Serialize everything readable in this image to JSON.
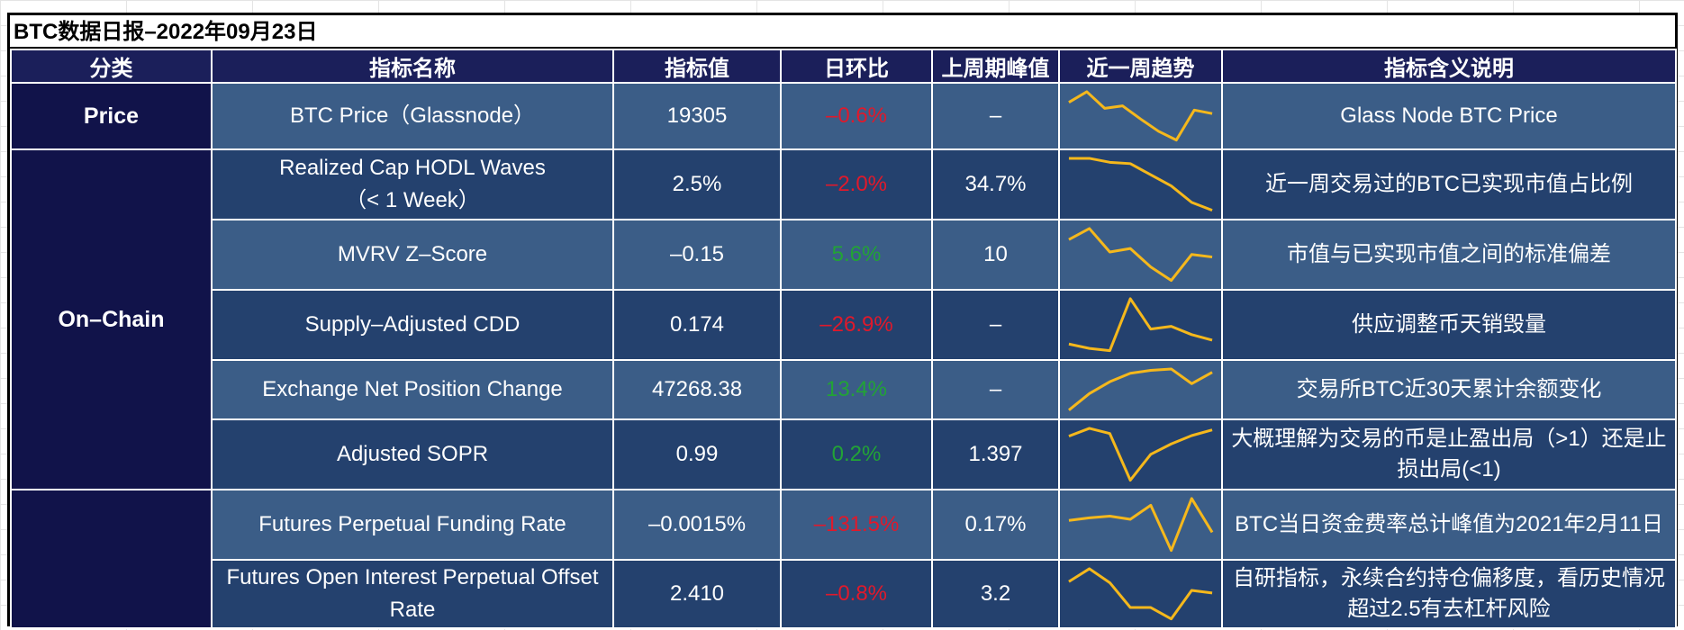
{
  "title": "BTC数据日报–2022年09月23日",
  "headers": [
    "分类",
    "指标名称",
    "指标值",
    "日环比",
    "上周期峰值",
    "近一周趋势",
    "指标含义说明"
  ],
  "categories": {
    "price": "Price",
    "onchain": "On–Chain",
    "derivatives": ""
  },
  "trend_color": "#f5b81c",
  "rows": [
    {
      "name": "BTC Price（Glassnode）",
      "value": "19305",
      "dod": "–0.6%",
      "dod_sign": "neg",
      "peak": "–",
      "trend": [
        0.62,
        0.92,
        0.45,
        0.52,
        0.15,
        -0.2,
        -0.45,
        0.4,
        0.3
      ],
      "desc": "Glass Node BTC Price"
    },
    {
      "name": "Realized Cap HODL Waves（< 1 Week）",
      "name_lines": [
        "Realized Cap HODL Waves",
        "（< 1 Week）"
      ],
      "value": "2.5%",
      "dod": "–2.0%",
      "dod_sign": "neg",
      "peak": "34.7%",
      "trend": [
        1.0,
        1.0,
        0.94,
        0.92,
        0.75,
        0.58,
        0.33,
        0.21
      ],
      "desc": "近一周交易过的BTC已实现市值占比例"
    },
    {
      "name": "MVRV Z–Score",
      "value": "–0.15",
      "dod": "5.6%",
      "dod_sign": "pos",
      "peak": "10",
      "trend": [
        0.7,
        0.92,
        0.45,
        0.52,
        0.15,
        -0.12,
        0.4,
        0.35
      ],
      "desc": "市值与已实现市值之间的标准偏差"
    },
    {
      "name": "Supply–Adjusted CDD",
      "value": "0.174",
      "dod": "–26.9%",
      "dod_sign": "neg",
      "peak": "–",
      "trend": [
        0.18,
        0.1,
        0.06,
        1.0,
        0.45,
        0.5,
        0.35,
        0.25
      ],
      "desc": "供应调整币天销毁量"
    },
    {
      "name": "Exchange Net Position Change",
      "value": "47268.38",
      "dod": "13.4%",
      "dod_sign": "pos",
      "peak": "–",
      "trend": [
        0.1,
        0.45,
        0.7,
        0.88,
        0.94,
        0.97,
        0.66,
        0.9
      ],
      "desc": "交易所BTC近30天累计余额变化"
    },
    {
      "name": "Adjusted SOPR",
      "value": "0.99",
      "dod": "0.2%",
      "dod_sign": "pos",
      "peak": "1.397",
      "trend": [
        0.85,
        1.0,
        0.9,
        0.0,
        0.5,
        0.7,
        0.86,
        0.97
      ],
      "desc": "大概理解为交易的币是止盈出局（>1）还是止损出局(<1)"
    },
    {
      "name": "Futures Perpetual Funding Rate",
      "value": "–0.0015%",
      "dod": "–131.5%",
      "dod_sign": "neg",
      "peak": "0.17%",
      "trend": [
        0.58,
        0.63,
        0.66,
        0.6,
        0.87,
        0.0,
        1.0,
        0.35
      ],
      "desc": "BTC当日资金费率总计峰值为2021年2月11日"
    },
    {
      "name": "Futures Open Interest Perpetual Offset Rate",
      "value": "2.410",
      "dod": "–0.8%",
      "dod_sign": "neg",
      "peak": "3.2",
      "trend": [
        0.72,
        0.97,
        0.7,
        0.22,
        0.22,
        0.0,
        0.55,
        0.5
      ],
      "desc": "自研指标，永续合约持仓偏移度，看历史情况超过2.5有去杠杆风险"
    }
  ]
}
